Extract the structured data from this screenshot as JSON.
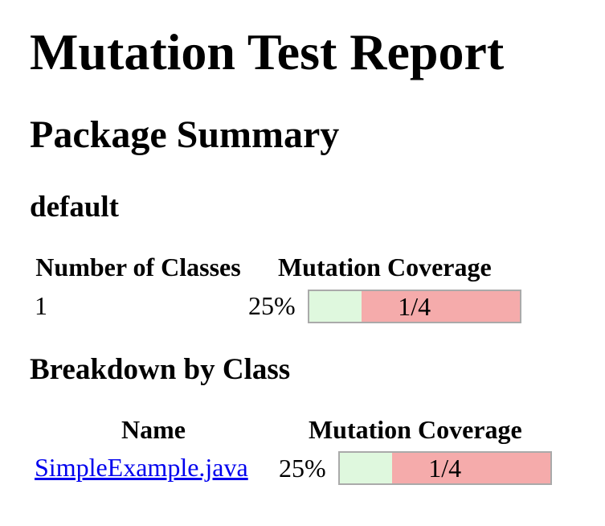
{
  "page": {
    "title": "Mutation Test Report"
  },
  "package_summary": {
    "heading": "Package Summary",
    "package_name": "default",
    "table": {
      "col_classes": "Number of Classes",
      "col_coverage": "Mutation Coverage",
      "row": {
        "number_of_classes": "1",
        "percent": "25%",
        "legend": "1/4",
        "fraction": 0.25
      }
    }
  },
  "breakdown": {
    "heading": "Breakdown by Class",
    "table": {
      "col_name": "Name",
      "col_coverage": "Mutation Coverage",
      "row": {
        "name": "SimpleExample.java",
        "percent": "25%",
        "legend": "1/4",
        "fraction": 0.25
      }
    }
  },
  "colors": {
    "covered": "#DFF8DE",
    "uncovered": "#F5ABAB",
    "bar_border": "#AAAAAA",
    "link": "#0000EE"
  }
}
